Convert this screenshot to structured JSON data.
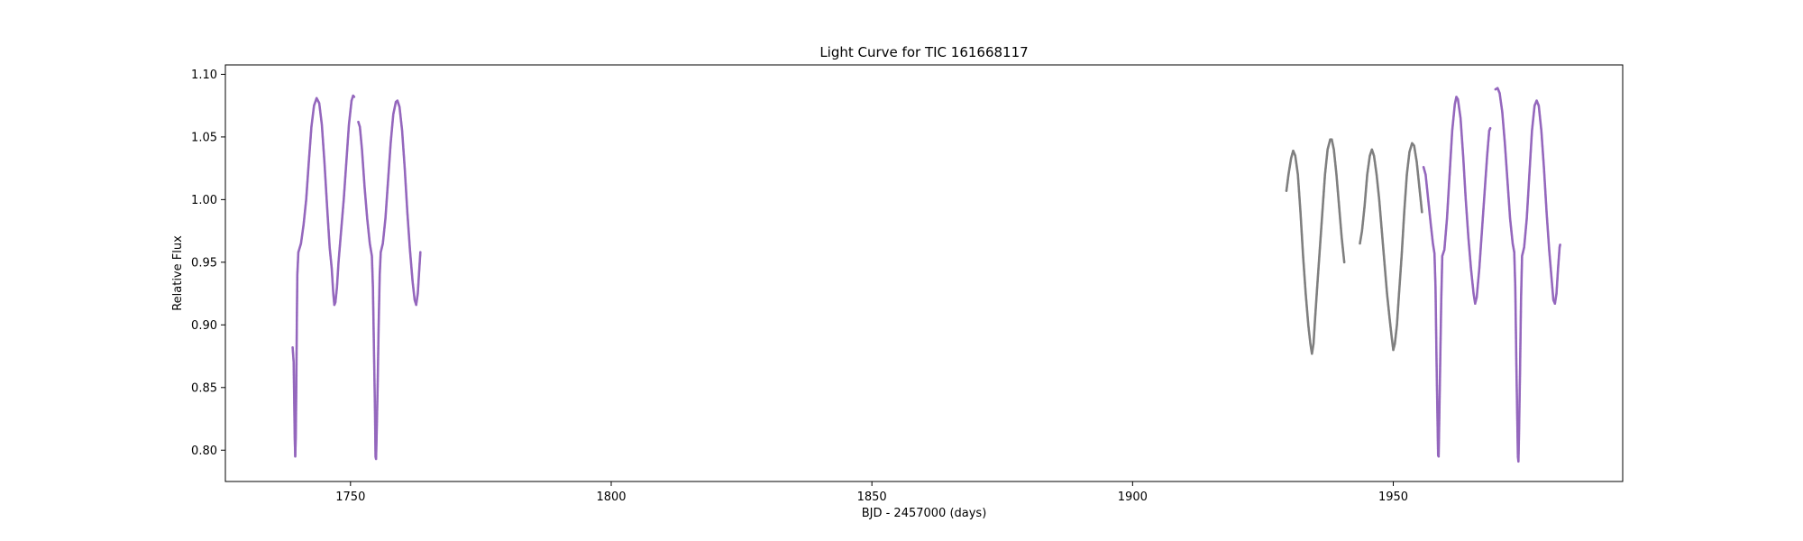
{
  "chart_data": {
    "type": "scatter",
    "title": "Light Curve for TIC 161668117",
    "xlabel": "BJD - 2457000 (days)",
    "ylabel": "Relative Flux",
    "xlim": [
      1726,
      1994
    ],
    "ylim": [
      0.775,
      1.1075
    ],
    "xticks": [
      1750,
      1800,
      1850,
      1900,
      1950
    ],
    "xtick_labels": [
      "1750",
      "1800",
      "1850",
      "1900",
      "1950"
    ],
    "yticks": [
      0.8,
      0.85,
      0.9,
      0.95,
      1.0,
      1.05,
      1.1
    ],
    "ytick_labels": [
      "0.80",
      "0.85",
      "0.90",
      "0.95",
      "1.00",
      "1.05",
      "1.10"
    ],
    "grid": false,
    "legend": "none",
    "series": [
      {
        "color": "#9467bd",
        "segments": [
          [
            [
              1738.9,
              0.882
            ],
            [
              1739.1,
              0.87
            ],
            [
              1739.2,
              0.84
            ],
            [
              1739.3,
              0.81
            ],
            [
              1739.4,
              0.795
            ],
            [
              1739.5,
              0.81
            ],
            [
              1739.6,
              0.85
            ],
            [
              1739.7,
              0.9
            ],
            [
              1739.8,
              0.94
            ],
            [
              1740.0,
              0.958
            ],
            [
              1740.5,
              0.965
            ],
            [
              1741.0,
              0.98
            ],
            [
              1741.5,
              1.0
            ],
            [
              1742.0,
              1.03
            ],
            [
              1742.5,
              1.058
            ],
            [
              1743.0,
              1.075
            ],
            [
              1743.5,
              1.081
            ],
            [
              1744.0,
              1.077
            ],
            [
              1744.5,
              1.06
            ],
            [
              1745.0,
              1.03
            ],
            [
              1745.5,
              0.995
            ],
            [
              1746.0,
              0.962
            ],
            [
              1746.4,
              0.945
            ],
            [
              1746.7,
              0.925
            ],
            [
              1746.9,
              0.916
            ],
            [
              1747.1,
              0.918
            ],
            [
              1747.4,
              0.93
            ],
            [
              1747.7,
              0.95
            ],
            [
              1748.2,
              0.975
            ],
            [
              1748.7,
              1.0
            ],
            [
              1749.2,
              1.03
            ],
            [
              1749.7,
              1.06
            ],
            [
              1750.2,
              1.079
            ],
            [
              1750.5,
              1.083
            ],
            [
              1750.7,
              1.082
            ]
          ],
          [
            [
              1751.5,
              1.062
            ],
            [
              1751.8,
              1.058
            ],
            [
              1752.2,
              1.04
            ],
            [
              1752.7,
              1.01
            ],
            [
              1753.2,
              0.985
            ],
            [
              1753.7,
              0.965
            ],
            [
              1754.1,
              0.955
            ],
            [
              1754.3,
              0.93
            ],
            [
              1754.5,
              0.88
            ],
            [
              1754.7,
              0.83
            ],
            [
              1754.8,
              0.795
            ],
            [
              1754.9,
              0.793
            ],
            [
              1755.0,
              0.81
            ],
            [
              1755.2,
              0.85
            ],
            [
              1755.4,
              0.9
            ],
            [
              1755.6,
              0.94
            ],
            [
              1755.8,
              0.958
            ],
            [
              1756.2,
              0.965
            ],
            [
              1756.7,
              0.985
            ],
            [
              1757.2,
              1.015
            ],
            [
              1757.7,
              1.045
            ],
            [
              1758.2,
              1.068
            ],
            [
              1758.7,
              1.078
            ],
            [
              1759.0,
              1.079
            ],
            [
              1759.4,
              1.074
            ],
            [
              1759.9,
              1.055
            ],
            [
              1760.4,
              1.025
            ],
            [
              1760.9,
              0.99
            ],
            [
              1761.4,
              0.96
            ],
            [
              1761.9,
              0.935
            ],
            [
              1762.3,
              0.92
            ],
            [
              1762.6,
              0.916
            ],
            [
              1762.9,
              0.925
            ],
            [
              1763.2,
              0.945
            ],
            [
              1763.4,
              0.958
            ]
          ],
          [
            [
              1955.8,
              1.026
            ],
            [
              1956.2,
              1.02
            ],
            [
              1956.7,
              1.0
            ],
            [
              1957.2,
              0.98
            ],
            [
              1957.6,
              0.965
            ],
            [
              1957.9,
              0.957
            ],
            [
              1958.1,
              0.93
            ],
            [
              1958.3,
              0.87
            ],
            [
              1958.5,
              0.82
            ],
            [
              1958.6,
              0.796
            ],
            [
              1958.7,
              0.795
            ],
            [
              1958.8,
              0.82
            ],
            [
              1959.0,
              0.87
            ],
            [
              1959.2,
              0.92
            ],
            [
              1959.4,
              0.955
            ],
            [
              1959.8,
              0.96
            ],
            [
              1960.3,
              0.985
            ],
            [
              1960.8,
              1.02
            ],
            [
              1961.3,
              1.055
            ],
            [
              1961.8,
              1.076
            ],
            [
              1962.1,
              1.082
            ],
            [
              1962.4,
              1.08
            ],
            [
              1962.9,
              1.065
            ],
            [
              1963.4,
              1.035
            ],
            [
              1963.9,
              1.0
            ],
            [
              1964.4,
              0.97
            ],
            [
              1964.9,
              0.945
            ],
            [
              1965.4,
              0.925
            ],
            [
              1965.7,
              0.917
            ],
            [
              1966.0,
              0.922
            ],
            [
              1966.5,
              0.945
            ],
            [
              1967.0,
              0.975
            ],
            [
              1967.5,
              1.005
            ],
            [
              1968.0,
              1.035
            ],
            [
              1968.4,
              1.055
            ],
            [
              1968.6,
              1.057
            ]
          ],
          [
            [
              1969.6,
              1.088
            ],
            [
              1970.0,
              1.089
            ],
            [
              1970.4,
              1.085
            ],
            [
              1970.9,
              1.07
            ],
            [
              1971.4,
              1.045
            ],
            [
              1971.9,
              1.015
            ],
            [
              1972.4,
              0.985
            ],
            [
              1972.9,
              0.965
            ],
            [
              1973.2,
              0.958
            ],
            [
              1973.4,
              0.93
            ],
            [
              1973.6,
              0.87
            ],
            [
              1973.8,
              0.82
            ],
            [
              1973.9,
              0.795
            ],
            [
              1974.0,
              0.791
            ],
            [
              1974.1,
              0.81
            ],
            [
              1974.3,
              0.86
            ],
            [
              1974.5,
              0.92
            ],
            [
              1974.7,
              0.955
            ],
            [
              1975.1,
              0.962
            ],
            [
              1975.6,
              0.985
            ],
            [
              1976.1,
              1.02
            ],
            [
              1976.6,
              1.055
            ],
            [
              1977.1,
              1.075
            ],
            [
              1977.5,
              1.079
            ],
            [
              1977.9,
              1.075
            ],
            [
              1978.4,
              1.055
            ],
            [
              1978.9,
              1.025
            ],
            [
              1979.4,
              0.99
            ],
            [
              1979.9,
              0.96
            ],
            [
              1980.4,
              0.935
            ],
            [
              1980.7,
              0.92
            ],
            [
              1981.0,
              0.917
            ],
            [
              1981.3,
              0.925
            ],
            [
              1981.6,
              0.945
            ],
            [
              1981.9,
              0.962
            ],
            [
              1982.0,
              0.964
            ]
          ]
        ]
      },
      {
        "color": "#7f7f7f",
        "segments": [
          [
            [
              1929.5,
              1.007
            ],
            [
              1929.9,
              1.02
            ],
            [
              1930.4,
              1.033
            ],
            [
              1930.8,
              1.039
            ],
            [
              1931.2,
              1.035
            ],
            [
              1931.7,
              1.02
            ],
            [
              1932.2,
              0.99
            ],
            [
              1932.7,
              0.955
            ],
            [
              1933.2,
              0.925
            ],
            [
              1933.7,
              0.9
            ],
            [
              1934.1,
              0.885
            ],
            [
              1934.4,
              0.877
            ],
            [
              1934.7,
              0.885
            ],
            [
              1935.0,
              0.905
            ],
            [
              1935.4,
              0.93
            ],
            [
              1935.9,
              0.96
            ],
            [
              1936.4,
              0.99
            ],
            [
              1936.9,
              1.02
            ],
            [
              1937.4,
              1.04
            ],
            [
              1937.9,
              1.048
            ],
            [
              1938.2,
              1.048
            ],
            [
              1938.6,
              1.04
            ],
            [
              1939.1,
              1.02
            ],
            [
              1939.6,
              0.995
            ],
            [
              1940.1,
              0.97
            ],
            [
              1940.6,
              0.95
            ]
          ],
          [
            [
              1943.6,
              0.965
            ],
            [
              1944.0,
              0.975
            ],
            [
              1944.5,
              0.995
            ],
            [
              1945.0,
              1.02
            ],
            [
              1945.5,
              1.035
            ],
            [
              1945.9,
              1.04
            ],
            [
              1946.3,
              1.035
            ],
            [
              1946.8,
              1.02
            ],
            [
              1947.3,
              1.0
            ],
            [
              1947.8,
              0.975
            ],
            [
              1948.3,
              0.95
            ],
            [
              1948.8,
              0.925
            ],
            [
              1949.3,
              0.905
            ],
            [
              1949.7,
              0.89
            ],
            [
              1950.0,
              0.88
            ],
            [
              1950.3,
              0.885
            ],
            [
              1950.7,
              0.9
            ],
            [
              1951.1,
              0.925
            ],
            [
              1951.6,
              0.955
            ],
            [
              1952.1,
              0.99
            ],
            [
              1952.6,
              1.02
            ],
            [
              1953.1,
              1.038
            ],
            [
              1953.6,
              1.045
            ],
            [
              1954.0,
              1.043
            ],
            [
              1954.5,
              1.03
            ],
            [
              1955.0,
              1.01
            ],
            [
              1955.5,
              0.99
            ]
          ]
        ]
      }
    ]
  }
}
